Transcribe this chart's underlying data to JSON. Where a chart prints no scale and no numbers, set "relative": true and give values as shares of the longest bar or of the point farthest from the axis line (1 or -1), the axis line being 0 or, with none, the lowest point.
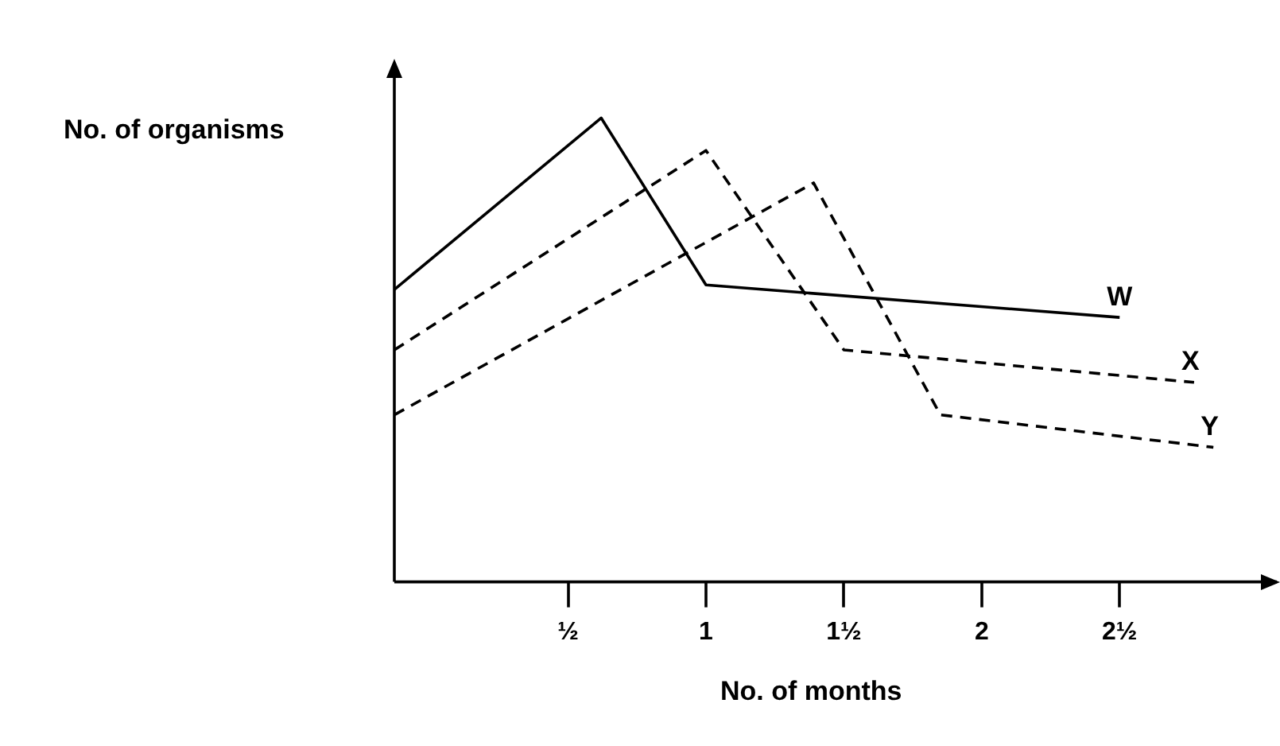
{
  "chart_data": {
    "type": "line",
    "xlabel": "No. of months",
    "ylabel": "No. of organisms",
    "relative": true,
    "marker": "none",
    "grid": false,
    "legend": false,
    "xlim": [
      -0.13,
      3.07
    ],
    "xticks": [
      {
        "value": 0.5,
        "label": "½"
      },
      {
        "value": 1,
        "label": "1"
      },
      {
        "value": 1.5,
        "label": "1½"
      },
      {
        "value": 2,
        "label": "2"
      },
      {
        "value": 2.5,
        "label": "2½"
      }
    ],
    "series": [
      {
        "name": "W",
        "color": "#000000",
        "line_style": "solid",
        "x": [
          -0.13,
          0.62,
          1.0,
          2.5
        ],
        "values": [
          0.63,
          1,
          0.64,
          0.57
        ]
      },
      {
        "name": "X",
        "color": "#000000",
        "line_style": "dashed",
        "x": [
          -0.13,
          1.0,
          1.5,
          2.77
        ],
        "values": [
          0.5,
          0.93,
          0.5,
          0.43
        ]
      },
      {
        "name": "Y",
        "color": "#000000",
        "line_style": "dashed",
        "x": [
          -0.13,
          1.39,
          1.85,
          2.84
        ],
        "values": [
          0.36,
          0.86,
          0.36,
          0.29
        ]
      }
    ]
  }
}
